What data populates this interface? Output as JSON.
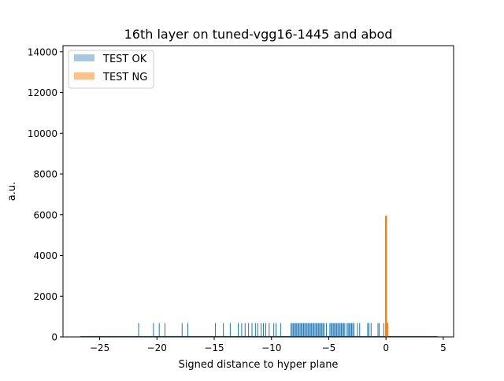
{
  "chart_data": {
    "type": "histogram",
    "title": "16th layer on tuned-vgg16-1445 and abod",
    "xlabel": "Signed distance to hyper plane",
    "ylabel": "a.u.",
    "xlim": [
      -28.2,
      5.9
    ],
    "ylim": [
      0,
      14300
    ],
    "xticks": [
      -25,
      -20,
      -15,
      -10,
      -5,
      0,
      5
    ],
    "xtick_labels": [
      "−25",
      "−20",
      "−15",
      "−10",
      "−5",
      "0",
      "5"
    ],
    "yticks": [
      0,
      2000,
      4000,
      6000,
      8000,
      10000,
      12000,
      14000
    ],
    "ytick_labels": [
      "0",
      "2000",
      "4000",
      "6000",
      "8000",
      "10000",
      "12000",
      "14000"
    ],
    "grid": false,
    "legend_position": "upper-left",
    "series": [
      {
        "name": "TEST OK",
        "color": "#1f77b4",
        "fill": "#a6c8e1",
        "baseline_range": [
          -26.7,
          4.5
        ],
        "bar_height": 680,
        "bar_positions": [
          -21.6,
          -20.3,
          -19.8,
          -19.3,
          -17.8,
          -17.3,
          -14.9,
          -14.2,
          -13.6,
          -12.9,
          -12.6,
          -12.3,
          -12.0,
          -11.7,
          -11.4,
          -11.2,
          -10.9,
          -10.7,
          -10.5,
          -10.2,
          -9.8,
          -9.6,
          -9.2,
          -8.3,
          -8.2,
          -8.1,
          -8.0,
          -7.9,
          -7.8,
          -7.7,
          -7.6,
          -7.5,
          -7.4,
          -7.3,
          -7.2,
          -7.1,
          -7.0,
          -6.9,
          -6.8,
          -6.7,
          -6.6,
          -6.5,
          -6.4,
          -6.3,
          -6.2,
          -6.1,
          -6.0,
          -5.9,
          -5.8,
          -5.7,
          -5.6,
          -5.5,
          -5.4,
          -5.2,
          -4.9,
          -4.8,
          -4.7,
          -4.6,
          -4.5,
          -4.4,
          -4.3,
          -4.2,
          -4.1,
          -4.0,
          -3.9,
          -3.8,
          -3.7,
          -3.6,
          -3.4,
          -3.3,
          -3.2,
          -3.1,
          -3.0,
          -2.9,
          -2.8,
          -2.5,
          -2.3,
          -1.6,
          -1.5,
          -1.3,
          -0.7,
          -0.6,
          -0.2,
          0.1
        ]
      },
      {
        "name": "TEST NG",
        "color": "#ff7f0e",
        "fill": "#ffc08a",
        "bars": [
          {
            "x": 0.0,
            "value": 5950
          },
          {
            "x": 0.1,
            "value": 700
          }
        ]
      }
    ]
  }
}
